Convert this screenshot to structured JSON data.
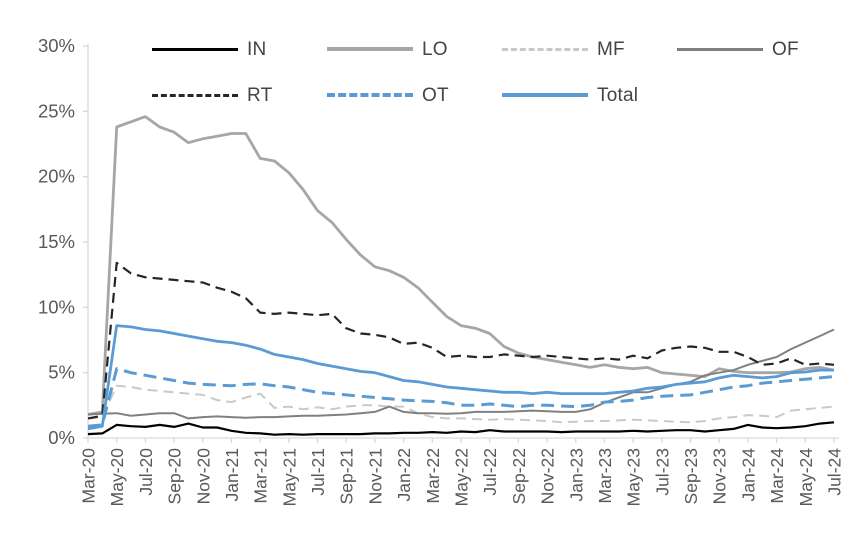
{
  "chart_data": {
    "type": "line",
    "title": "",
    "xlabel": "",
    "ylabel": "",
    "grid": "off",
    "legend_position": "top",
    "axis_color": "#d9d9d9",
    "label_color": "#595959",
    "x_label_step": 2,
    "x": [
      "Mar-20",
      "Apr-20",
      "May-20",
      "Jun-20",
      "Jul-20",
      "Aug-20",
      "Sep-20",
      "Oct-20",
      "Nov-20",
      "Dec-20",
      "Jan-21",
      "Feb-21",
      "Mar-21",
      "Apr-21",
      "May-21",
      "Jun-21",
      "Jul-21",
      "Aug-21",
      "Sep-21",
      "Oct-21",
      "Nov-21",
      "Dec-21",
      "Jan-22",
      "Feb-22",
      "Mar-22",
      "Apr-22",
      "May-22",
      "Jun-22",
      "Jul-22",
      "Aug-22",
      "Sep-22",
      "Oct-22",
      "Nov-22",
      "Dec-22",
      "Jan-23",
      "Feb-23",
      "Mar-23",
      "Apr-23",
      "May-23",
      "Jun-23",
      "Jul-23",
      "Aug-23",
      "Sep-23",
      "Oct-23",
      "Nov-23",
      "Dec-23",
      "Jan-24",
      "Feb-24",
      "Mar-24",
      "Apr-24",
      "May-24",
      "Jun-24",
      "Jul-24"
    ],
    "y_axis": {
      "min": 0,
      "max": 30,
      "tick_step": 5,
      "tick_labels": [
        "0%",
        "5%",
        "10%",
        "15%",
        "20%",
        "25%",
        "30%"
      ],
      "unit": "%"
    },
    "series": [
      {
        "name": "IN",
        "color": "#000000",
        "style": "solid",
        "width": 2.2,
        "values": [
          0.3,
          0.35,
          1.0,
          0.9,
          0.85,
          1.0,
          0.85,
          1.1,
          0.8,
          0.8,
          0.55,
          0.4,
          0.35,
          0.25,
          0.3,
          0.25,
          0.3,
          0.3,
          0.3,
          0.3,
          0.35,
          0.35,
          0.4,
          0.4,
          0.45,
          0.4,
          0.5,
          0.45,
          0.6,
          0.5,
          0.5,
          0.5,
          0.5,
          0.45,
          0.5,
          0.5,
          0.5,
          0.5,
          0.55,
          0.5,
          0.55,
          0.6,
          0.6,
          0.5,
          0.6,
          0.7,
          1.0,
          0.8,
          0.75,
          0.8,
          0.9,
          1.1,
          1.2
        ]
      },
      {
        "name": "LO",
        "color": "#a6a6a6",
        "style": "solid",
        "width": 2.8,
        "values": [
          1.8,
          2.0,
          23.8,
          24.2,
          24.6,
          23.8,
          23.4,
          22.6,
          22.9,
          23.1,
          23.3,
          23.3,
          21.4,
          21.2,
          20.3,
          19.0,
          17.4,
          16.5,
          15.2,
          14.0,
          13.1,
          12.8,
          12.3,
          11.5,
          10.4,
          9.3,
          8.6,
          8.4,
          8.0,
          7.0,
          6.5,
          6.2,
          6.0,
          5.8,
          5.6,
          5.4,
          5.6,
          5.4,
          5.3,
          5.4,
          5.0,
          4.9,
          4.8,
          4.7,
          5.3,
          5.1,
          5.0,
          5.0,
          5.0,
          5.05,
          5.3,
          5.4,
          5.2
        ]
      },
      {
        "name": "MF",
        "color": "#c9c9c9",
        "style": "dashed",
        "width": 2.0,
        "values": [
          1.5,
          1.6,
          4.0,
          3.9,
          3.7,
          3.6,
          3.5,
          3.4,
          3.3,
          2.9,
          2.75,
          3.1,
          3.4,
          2.3,
          2.4,
          2.2,
          2.35,
          2.2,
          2.4,
          2.5,
          2.5,
          2.4,
          2.4,
          1.9,
          1.6,
          1.5,
          1.5,
          1.45,
          1.4,
          1.45,
          1.4,
          1.35,
          1.3,
          1.2,
          1.25,
          1.3,
          1.3,
          1.35,
          1.4,
          1.35,
          1.3,
          1.25,
          1.2,
          1.3,
          1.5,
          1.6,
          1.75,
          1.7,
          1.6,
          2.1,
          2.2,
          2.3,
          2.4
        ]
      },
      {
        "name": "OF",
        "color": "#808080",
        "style": "solid",
        "width": 2.0,
        "values": [
          1.8,
          1.85,
          1.9,
          1.7,
          1.8,
          1.9,
          1.9,
          1.5,
          1.6,
          1.65,
          1.6,
          1.55,
          1.6,
          1.6,
          1.65,
          1.7,
          1.7,
          1.75,
          1.8,
          1.9,
          2.0,
          2.4,
          2.0,
          1.9,
          1.9,
          1.85,
          1.9,
          2.0,
          2.0,
          2.0,
          2.05,
          2.1,
          2.05,
          2.0,
          2.0,
          2.2,
          2.7,
          3.1,
          3.5,
          3.5,
          3.8,
          4.1,
          4.3,
          4.8,
          5.0,
          5.2,
          5.6,
          5.9,
          6.2,
          6.8,
          7.3,
          7.8,
          8.3
        ]
      },
      {
        "name": "RT",
        "color": "#262626",
        "style": "dashed",
        "width": 2.2,
        "values": [
          1.5,
          1.7,
          13.4,
          12.6,
          12.3,
          12.2,
          12.1,
          12.0,
          11.9,
          11.5,
          11.2,
          10.7,
          9.6,
          9.5,
          9.6,
          9.5,
          9.4,
          9.5,
          8.4,
          8.0,
          7.9,
          7.7,
          7.2,
          7.3,
          6.9,
          6.2,
          6.3,
          6.2,
          6.2,
          6.4,
          6.3,
          6.2,
          6.3,
          6.2,
          6.1,
          6.0,
          6.1,
          6.0,
          6.3,
          6.1,
          6.7,
          6.9,
          7.0,
          6.9,
          6.6,
          6.6,
          6.2,
          5.6,
          5.7,
          6.1,
          5.6,
          5.7,
          5.6
        ]
      },
      {
        "name": "OT",
        "color": "#5b9bd5",
        "style": "dashed",
        "width": 3.0,
        "values": [
          0.9,
          1.0,
          5.3,
          5.0,
          4.8,
          4.6,
          4.4,
          4.2,
          4.1,
          4.05,
          4.0,
          4.1,
          4.15,
          4.0,
          3.9,
          3.7,
          3.5,
          3.4,
          3.3,
          3.2,
          3.1,
          3.0,
          2.9,
          2.85,
          2.8,
          2.7,
          2.5,
          2.5,
          2.6,
          2.5,
          2.4,
          2.5,
          2.5,
          2.45,
          2.4,
          2.5,
          2.75,
          2.8,
          2.9,
          3.1,
          3.2,
          3.25,
          3.3,
          3.5,
          3.7,
          3.9,
          4.0,
          4.2,
          4.3,
          4.4,
          4.5,
          4.6,
          4.7
        ]
      },
      {
        "name": "Total",
        "color": "#5b9bd5",
        "style": "solid",
        "width": 2.8,
        "values": [
          0.7,
          0.9,
          8.6,
          8.5,
          8.3,
          8.2,
          8.0,
          7.8,
          7.6,
          7.4,
          7.3,
          7.1,
          6.8,
          6.4,
          6.2,
          6.0,
          5.7,
          5.5,
          5.3,
          5.1,
          5.0,
          4.7,
          4.4,
          4.3,
          4.1,
          3.9,
          3.8,
          3.7,
          3.6,
          3.5,
          3.5,
          3.4,
          3.5,
          3.4,
          3.4,
          3.4,
          3.4,
          3.5,
          3.6,
          3.8,
          3.9,
          4.1,
          4.2,
          4.3,
          4.6,
          4.8,
          4.7,
          4.6,
          4.7,
          5.0,
          5.05,
          5.2,
          5.2
        ]
      }
    ]
  }
}
